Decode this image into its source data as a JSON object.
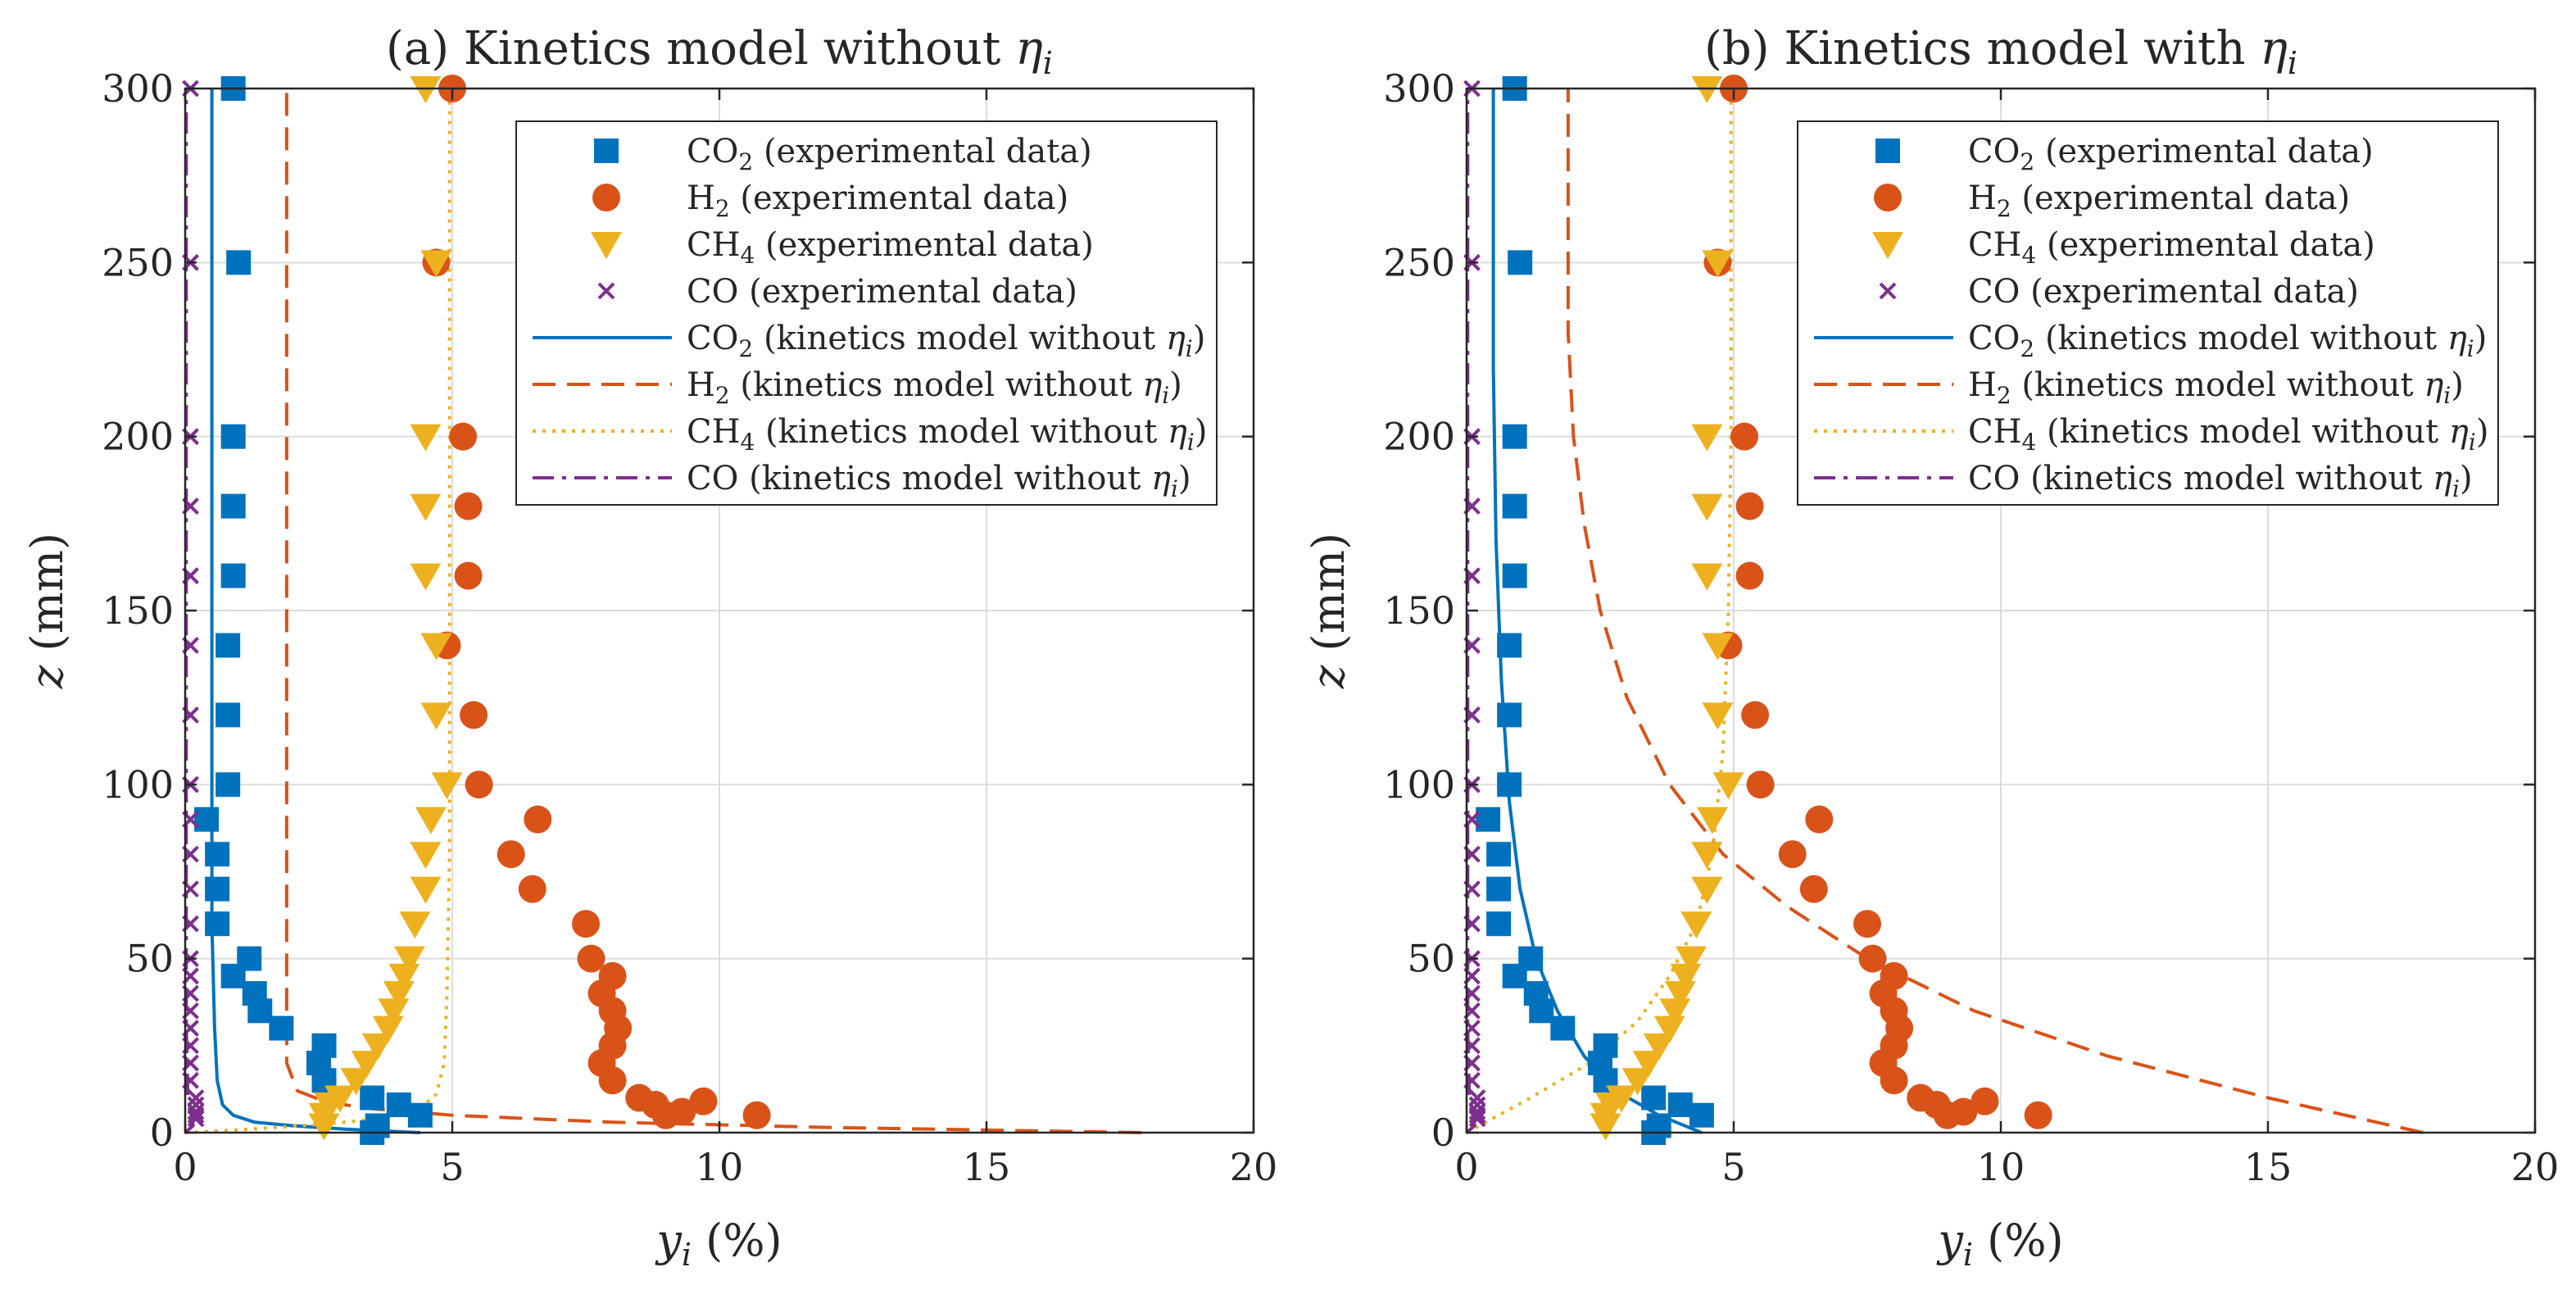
{
  "colors": {
    "co2": "#0072BD",
    "h2": "#D95319",
    "ch4": "#EDB120",
    "co": "#7E2F8E"
  },
  "chart_data": [
    {
      "type": "scatter+line",
      "title_text": "(a) Kinetics model without ",
      "title_symbol": "η",
      "title_sub": "i",
      "xlabel": "y",
      "xlabel_sub": "i",
      "xlabel_unit": " (%)",
      "ylabel": "z",
      "ylabel_unit": " (mm)",
      "xlim": [
        0,
        20
      ],
      "ylim": [
        0,
        300
      ],
      "xticks": [
        0,
        5,
        10,
        15,
        20
      ],
      "yticks": [
        0,
        50,
        100,
        150,
        200,
        250,
        300
      ],
      "grid": true,
      "legend_position": "top-right",
      "legend": [
        {
          "species": "CO",
          "sub": "2",
          "text": " (experimental data)",
          "kind": "square",
          "color_key": "co2"
        },
        {
          "species": "H",
          "sub": "2",
          "text": " (experimental data)",
          "kind": "circle",
          "color_key": "h2"
        },
        {
          "species": "CH",
          "sub": "4",
          "text": " (experimental data)",
          "kind": "triangle",
          "color_key": "ch4"
        },
        {
          "species": "CO",
          "sub": "",
          "text": " (experimental data)",
          "kind": "cross",
          "color_key": "co"
        },
        {
          "species": "CO",
          "sub": "2",
          "text": " (kinetics model without ",
          "eta": "η",
          "eta_sub": "i",
          "close": ")",
          "kind": "solid",
          "color_key": "co2"
        },
        {
          "species": "H",
          "sub": "2",
          "text": " (kinetics model without ",
          "eta": "η",
          "eta_sub": "i",
          "close": ")",
          "kind": "dashed",
          "color_key": "h2"
        },
        {
          "species": "CH",
          "sub": "4",
          "text": " (kinetics model without ",
          "eta": "η",
          "eta_sub": "i",
          "close": ")",
          "kind": "dotted",
          "color_key": "ch4"
        },
        {
          "species": "CO",
          "sub": "",
          "text": " (kinetics model without ",
          "eta": "η",
          "eta_sub": "i",
          "close": ")",
          "kind": "dashdot",
          "color_key": "co"
        }
      ],
      "experimental": {
        "CO2": {
          "x": [
            0.9,
            1.0,
            0.9,
            0.9,
            0.9,
            0.8,
            0.8,
            0.8,
            0.4,
            0.6,
            0.6,
            0.6,
            1.2,
            0.9,
            1.3,
            1.4,
            1.8,
            2.6,
            2.5,
            2.6,
            3.5,
            4.0,
            4.4,
            3.6,
            3.5
          ],
          "y": [
            300,
            250,
            200,
            180,
            160,
            140,
            120,
            100,
            90,
            80,
            70,
            60,
            50,
            45,
            40,
            35,
            30,
            25,
            20,
            15,
            10,
            8,
            5,
            2,
            0
          ]
        },
        "H2": {
          "x": [
            5.0,
            4.7,
            5.2,
            5.3,
            5.3,
            4.9,
            5.4,
            5.5,
            6.6,
            6.1,
            6.5,
            7.5,
            7.6,
            8.0,
            7.8,
            8.0,
            8.1,
            8.0,
            7.8,
            8.0,
            8.5,
            8.8,
            9.3,
            9.0,
            9.7,
            10.7
          ],
          "y": [
            300,
            250,
            200,
            180,
            160,
            140,
            120,
            100,
            90,
            80,
            70,
            60,
            50,
            45,
            40,
            35,
            30,
            25,
            20,
            15,
            10,
            8,
            6,
            5,
            9,
            5
          ]
        },
        "CH4": {
          "x": [
            4.5,
            4.7,
            4.5,
            4.5,
            4.5,
            4.7,
            4.7,
            4.9,
            4.6,
            4.5,
            4.5,
            4.3,
            4.2,
            4.1,
            4.0,
            3.9,
            3.8,
            3.6,
            3.4,
            3.2,
            2.9,
            2.7,
            2.6,
            2.6
          ],
          "y": [
            300,
            250,
            200,
            180,
            160,
            140,
            120,
            100,
            90,
            80,
            70,
            60,
            50,
            45,
            40,
            35,
            30,
            25,
            20,
            15,
            10,
            8,
            5,
            2
          ]
        },
        "CO": {
          "x": [
            0.1,
            0.1,
            0.1,
            0.1,
            0.1,
            0.1,
            0.1,
            0.1,
            0.1,
            0.1,
            0.1,
            0.1,
            0.1,
            0.1,
            0.1,
            0.1,
            0.1,
            0.1,
            0.1,
            0.1,
            0.2,
            0.2,
            0.2,
            0.2,
            0.2
          ],
          "y": [
            300,
            250,
            200,
            180,
            160,
            140,
            120,
            100,
            90,
            80,
            70,
            60,
            50,
            45,
            40,
            35,
            30,
            25,
            20,
            15,
            10,
            8,
            6,
            5,
            4
          ]
        }
      },
      "model": {
        "CO2": {
          "x": [
            4.4,
            3.0,
            2.0,
            1.3,
            0.9,
            0.7,
            0.6,
            0.55,
            0.5,
            0.5,
            0.5,
            0.5,
            0.5
          ],
          "y": [
            0,
            1,
            2,
            3,
            5,
            8,
            15,
            30,
            60,
            100,
            150,
            220,
            300
          ]
        },
        "H2": {
          "x": [
            17.9,
            12.0,
            8.0,
            5.0,
            3.4,
            2.6,
            2.1,
            2.0,
            1.9,
            1.9,
            1.9,
            1.9,
            1.9,
            1.9,
            1.9
          ],
          "y": [
            0,
            1.5,
            3,
            5,
            7,
            9,
            12,
            16,
            20,
            30,
            60,
            100,
            160,
            240,
            300
          ]
        },
        "CH4": {
          "x": [
            0,
            1.0,
            2.0,
            3.0,
            3.8,
            4.4,
            4.7,
            4.85,
            4.9,
            4.95,
            4.95,
            4.95,
            4.95
          ],
          "y": [
            0,
            0.8,
            1.8,
            3,
            4.5,
            7,
            11,
            20,
            40,
            80,
            150,
            220,
            300
          ]
        },
        "CO": {
          "x": [
            0.0,
            0.15,
            0.12,
            0.05,
            0.02,
            0.02,
            0.02,
            0.02
          ],
          "y": [
            0,
            2,
            5,
            10,
            30,
            100,
            200,
            300
          ]
        }
      }
    },
    {
      "type": "scatter+line",
      "title_text": "(b) Kinetics model with ",
      "title_symbol": "η",
      "title_sub": "i",
      "xlabel": "y",
      "xlabel_sub": "i",
      "xlabel_unit": " (%)",
      "ylabel": "z",
      "ylabel_unit": " (mm)",
      "xlim": [
        0,
        20
      ],
      "ylim": [
        0,
        300
      ],
      "xticks": [
        0,
        5,
        10,
        15,
        20
      ],
      "yticks": [
        0,
        50,
        100,
        150,
        200,
        250,
        300
      ],
      "grid": true,
      "legend_position": "top-right",
      "legend": [
        {
          "species": "CO",
          "sub": "2",
          "text": " (experimental data)",
          "kind": "square",
          "color_key": "co2"
        },
        {
          "species": "H",
          "sub": "2",
          "text": " (experimental data)",
          "kind": "circle",
          "color_key": "h2"
        },
        {
          "species": "CH",
          "sub": "4",
          "text": " (experimental data)",
          "kind": "triangle",
          "color_key": "ch4"
        },
        {
          "species": "CO",
          "sub": "",
          "text": " (experimental data)",
          "kind": "cross",
          "color_key": "co"
        },
        {
          "species": "CO",
          "sub": "2",
          "text": " (kinetics model without ",
          "eta": "η",
          "eta_sub": "i",
          "close": ")",
          "kind": "solid",
          "color_key": "co2"
        },
        {
          "species": "H",
          "sub": "2",
          "text": " (kinetics model without ",
          "eta": "η",
          "eta_sub": "i",
          "close": ")",
          "kind": "dashed",
          "color_key": "h2"
        },
        {
          "species": "CH",
          "sub": "4",
          "text": " (kinetics model without ",
          "eta": "η",
          "eta_sub": "i",
          "close": ")",
          "kind": "dotted",
          "color_key": "ch4"
        },
        {
          "species": "CO",
          "sub": "",
          "text": " (kinetics model without ",
          "eta": "η",
          "eta_sub": "i",
          "close": ")",
          "kind": "dashdot",
          "color_key": "co"
        }
      ],
      "experimental": {
        "CO2": {
          "x": [
            0.9,
            1.0,
            0.9,
            0.9,
            0.9,
            0.8,
            0.8,
            0.8,
            0.4,
            0.6,
            0.6,
            0.6,
            1.2,
            0.9,
            1.3,
            1.4,
            1.8,
            2.6,
            2.5,
            2.6,
            3.5,
            4.0,
            4.4,
            3.6,
            3.5
          ],
          "y": [
            300,
            250,
            200,
            180,
            160,
            140,
            120,
            100,
            90,
            80,
            70,
            60,
            50,
            45,
            40,
            35,
            30,
            25,
            20,
            15,
            10,
            8,
            5,
            2,
            0
          ]
        },
        "H2": {
          "x": [
            5.0,
            4.7,
            5.2,
            5.3,
            5.3,
            4.9,
            5.4,
            5.5,
            6.6,
            6.1,
            6.5,
            7.5,
            7.6,
            8.0,
            7.8,
            8.0,
            8.1,
            8.0,
            7.8,
            8.0,
            8.5,
            8.8,
            9.3,
            9.0,
            9.7,
            10.7
          ],
          "y": [
            300,
            250,
            200,
            180,
            160,
            140,
            120,
            100,
            90,
            80,
            70,
            60,
            50,
            45,
            40,
            35,
            30,
            25,
            20,
            15,
            10,
            8,
            6,
            5,
            9,
            5
          ]
        },
        "CH4": {
          "x": [
            4.5,
            4.7,
            4.5,
            4.5,
            4.5,
            4.7,
            4.7,
            4.9,
            4.6,
            4.5,
            4.5,
            4.3,
            4.2,
            4.1,
            4.0,
            3.9,
            3.8,
            3.6,
            3.4,
            3.2,
            2.9,
            2.7,
            2.6,
            2.6
          ],
          "y": [
            300,
            250,
            200,
            180,
            160,
            140,
            120,
            100,
            90,
            80,
            70,
            60,
            50,
            45,
            40,
            35,
            30,
            25,
            20,
            15,
            10,
            8,
            5,
            2
          ]
        },
        "CO": {
          "x": [
            0.1,
            0.1,
            0.1,
            0.1,
            0.1,
            0.1,
            0.1,
            0.1,
            0.1,
            0.1,
            0.1,
            0.1,
            0.1,
            0.1,
            0.1,
            0.1,
            0.1,
            0.1,
            0.1,
            0.1,
            0.2,
            0.2,
            0.2,
            0.2,
            0.2
          ],
          "y": [
            300,
            250,
            200,
            180,
            160,
            140,
            120,
            100,
            90,
            80,
            70,
            60,
            50,
            45,
            40,
            35,
            30,
            25,
            20,
            15,
            10,
            8,
            6,
            5,
            4
          ]
        }
      },
      "model": {
        "CO2": {
          "x": [
            4.4,
            3.6,
            2.8,
            2.2,
            1.7,
            1.3,
            1.0,
            0.8,
            0.65,
            0.55,
            0.5,
            0.5,
            0.5
          ],
          "y": [
            0,
            5,
            12,
            22,
            35,
            50,
            70,
            95,
            130,
            170,
            220,
            260,
            300
          ]
        },
        "H2": {
          "x": [
            17.9,
            15.0,
            12.0,
            9.5,
            7.5,
            6.0,
            4.8,
            3.8,
            3.0,
            2.5,
            2.2,
            2.0,
            1.9,
            1.9,
            1.9
          ],
          "y": [
            0,
            10,
            22,
            35,
            50,
            65,
            80,
            100,
            125,
            150,
            175,
            200,
            230,
            270,
            300
          ]
        },
        "CH4": {
          "x": [
            0,
            1.2,
            2.3,
            3.2,
            3.8,
            4.3,
            4.6,
            4.8,
            4.9,
            4.95,
            4.95,
            4.95
          ],
          "y": [
            0,
            10,
            20,
            32,
            45,
            60,
            80,
            110,
            150,
            200,
            250,
            300
          ]
        },
        "CO": {
          "x": [
            0.0,
            0.15,
            0.12,
            0.05,
            0.02,
            0.02,
            0.02,
            0.02
          ],
          "y": [
            0,
            2,
            5,
            10,
            30,
            100,
            200,
            300
          ]
        }
      }
    }
  ]
}
